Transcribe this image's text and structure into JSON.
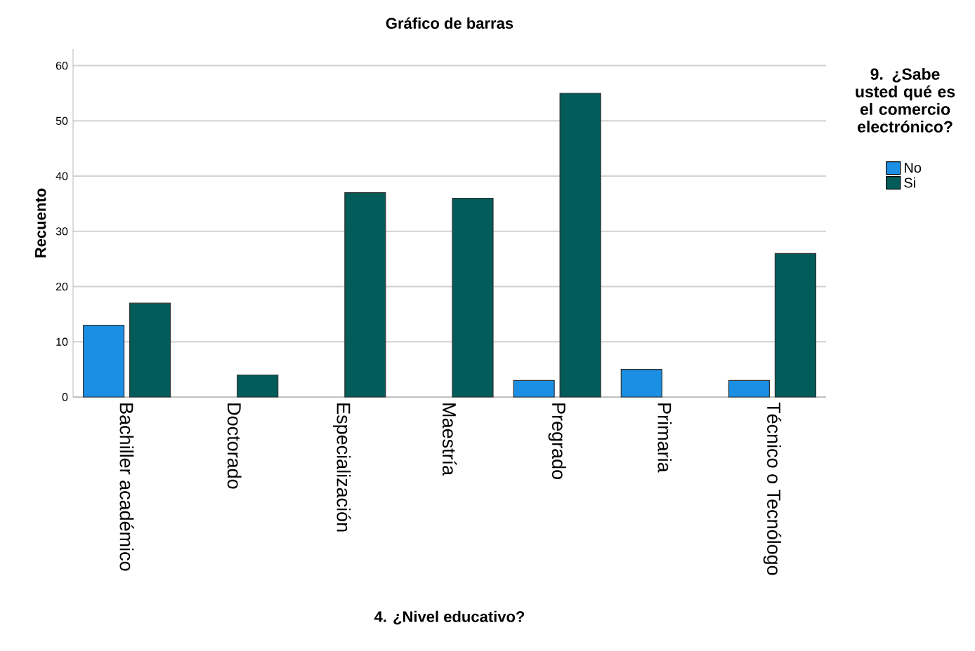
{
  "chart_data": {
    "type": "bar",
    "title": "Gráfico de barras",
    "xlabel": "4. ¿Nivel educativo?",
    "ylabel": "Recuento",
    "legend_title": "9. ¿Sabe usted qué es el comercio electrónico?",
    "categories": [
      "Bachiller académico",
      "Doctorado",
      "Especialización",
      "Maestría",
      "Pregrado",
      "Primaria",
      "Técnico o Tecnólogo"
    ],
    "series": [
      {
        "name": "No",
        "color": "#1a8fe3",
        "values": [
          13,
          null,
          null,
          null,
          3,
          5,
          3
        ]
      },
      {
        "name": "Si",
        "color": "#015c5a",
        "values": [
          17,
          4,
          37,
          36,
          55,
          null,
          26
        ]
      }
    ],
    "ylim": [
      0,
      63
    ],
    "yticks": [
      0,
      10,
      20,
      30,
      40,
      50,
      60
    ],
    "grid": "y",
    "legend": "top right"
  }
}
